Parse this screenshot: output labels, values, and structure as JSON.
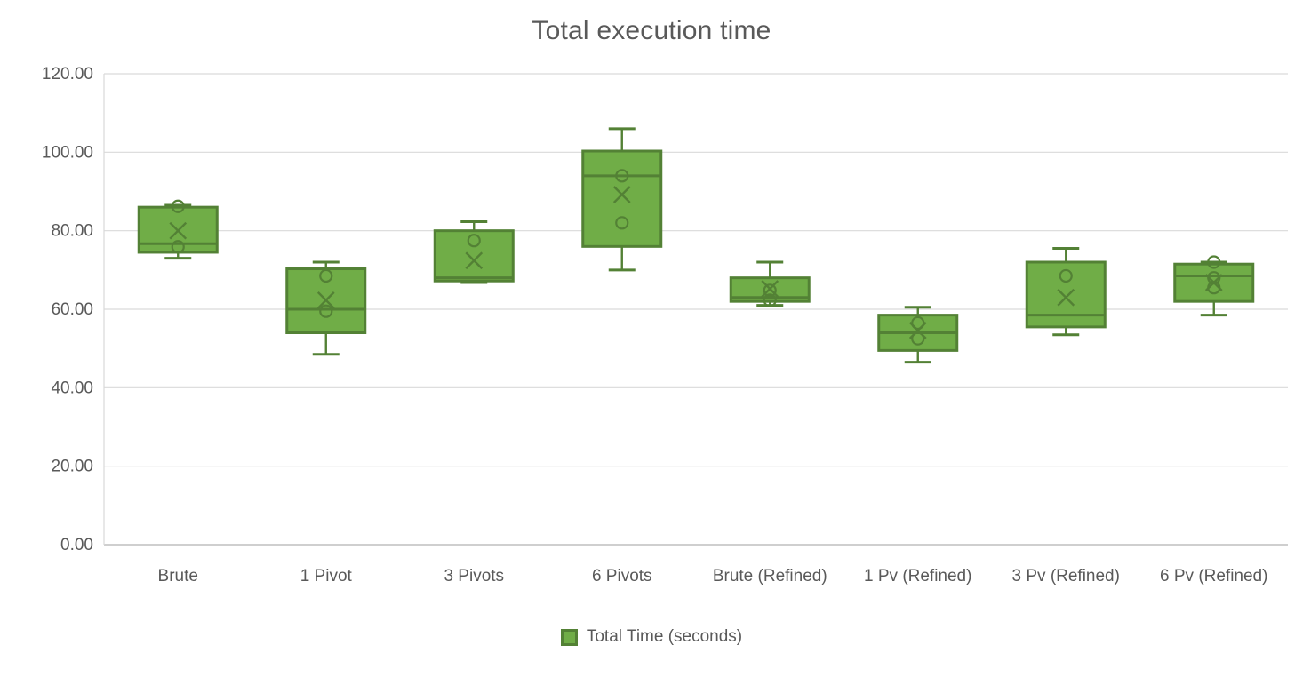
{
  "title": "Total execution time",
  "legend": {
    "label": "Total Time (seconds)"
  },
  "colors": {
    "box_fill": "#70AD47",
    "box_stroke": "#538135",
    "gridline": "#D9D9D9",
    "baseline": "#BFBFBF",
    "text": "#595959"
  },
  "chart_data": {
    "type": "boxplot",
    "title": "Total execution time",
    "ylabel": "",
    "xlabel": "",
    "ylim": [
      0,
      120
    ],
    "grid": "horizontal",
    "legend_position": "bottom",
    "y_ticks": [
      {
        "value": 0,
        "label": "0.00"
      },
      {
        "value": 20,
        "label": "20.00"
      },
      {
        "value": 40,
        "label": "40.00"
      },
      {
        "value": 60,
        "label": "60.00"
      },
      {
        "value": 80,
        "label": "80.00"
      },
      {
        "value": 100,
        "label": "100.00"
      },
      {
        "value": 120,
        "label": "120.00"
      }
    ],
    "categories": [
      "Brute",
      "1 Pivot",
      "3 Pivots",
      "6 Pivots",
      "Brute (Refined)",
      "1 Pv (Refined)",
      "3 Pv (Refined)",
      "6 Pv (Refined)"
    ],
    "series": [
      {
        "name": "Total Time (seconds)",
        "boxes": [
          {
            "category": "Brute",
            "min": 73,
            "q1": 74.5,
            "median": 76.7,
            "q3": 86,
            "max": 86.5,
            "mean": 80,
            "points": [
              86.2,
              75.9
            ]
          },
          {
            "category": "1 Pivot",
            "min": 48.5,
            "q1": 54,
            "median": 60,
            "q3": 70.3,
            "max": 72,
            "mean": 62.3,
            "points": [
              68.5,
              59.5
            ]
          },
          {
            "category": "3 Pivots",
            "min": 66.8,
            "q1": 67.2,
            "median": 68,
            "q3": 80,
            "max": 82.3,
            "mean": 72.4,
            "points": [
              77.5
            ]
          },
          {
            "category": "6 Pivots",
            "min": 70,
            "q1": 76,
            "median": 94,
            "q3": 100.3,
            "max": 106,
            "mean": 89.2,
            "points": [
              94,
              82
            ]
          },
          {
            "category": "Brute (Refined)",
            "min": 61,
            "q1": 62,
            "median": 63,
            "q3": 68,
            "max": 72,
            "mean": 65.2,
            "points": [
              64.8,
              62.3
            ]
          },
          {
            "category": "1 Pv (Refined)",
            "min": 46.5,
            "q1": 49.5,
            "median": 54,
            "q3": 58.5,
            "max": 60.5,
            "mean": 54.6,
            "points": [
              56.5,
              52.5
            ]
          },
          {
            "category": "3 Pv (Refined)",
            "min": 53.5,
            "q1": 55.5,
            "median": 58.5,
            "q3": 72,
            "max": 75.5,
            "mean": 63,
            "points": [
              68.5
            ]
          },
          {
            "category": "6 Pv (Refined)",
            "min": 58.5,
            "q1": 62,
            "median": 68.5,
            "q3": 71.5,
            "max": 72,
            "mean": 66.8,
            "points": [
              72,
              68,
              65.5
            ]
          }
        ]
      }
    ]
  }
}
